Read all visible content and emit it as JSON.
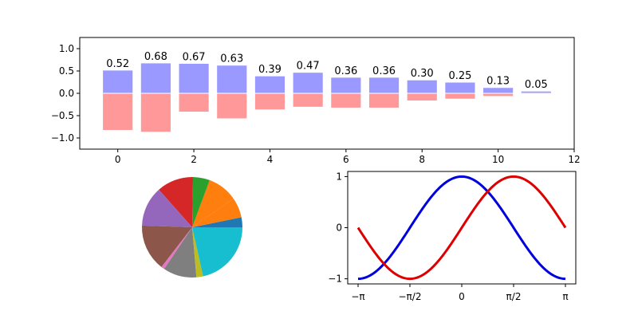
{
  "chart_data": [
    {
      "type": "bar",
      "x": [
        0,
        1,
        2,
        3,
        4,
        5,
        6,
        7,
        8,
        9,
        10,
        11
      ],
      "series": [
        {
          "values": [
            0.52,
            0.68,
            0.67,
            0.63,
            0.39,
            0.47,
            0.36,
            0.36,
            0.3,
            0.25,
            0.13,
            0.05
          ],
          "color": "#9999ff"
        },
        {
          "values": [
            -0.83,
            -0.87,
            -0.42,
            -0.57,
            -0.37,
            -0.31,
            -0.33,
            -0.33,
            -0.17,
            -0.13,
            -0.07,
            -0.02
          ],
          "color": "#ff9999"
        }
      ],
      "data_labels": [
        "0.52",
        "0.68",
        "0.67",
        "0.63",
        "0.39",
        "0.47",
        "0.36",
        "0.36",
        "0.30",
        "0.25",
        "0.13",
        "0.05"
      ],
      "xlim": [
        -1,
        12
      ],
      "ylim": [
        -1.25,
        1.25
      ],
      "xticks": [
        0,
        2,
        4,
        6,
        8,
        10,
        12
      ],
      "xtick_labels": [
        "0",
        "2",
        "4",
        "6",
        "8",
        "10",
        "12"
      ],
      "yticks": [
        -1.0,
        -0.5,
        0.0,
        0.5,
        1.0
      ],
      "ytick_labels": [
        "−1.0",
        "−0.5",
        "0.0",
        "0.5",
        "1.0"
      ],
      "grid": false
    },
    {
      "type": "pie",
      "values": [
        3,
        6,
        9,
        5,
        11,
        12,
        14,
        1,
        10,
        2,
        20
      ],
      "colors": [
        "#1f77b4",
        "#ff7f0e",
        "#ff7f0e",
        "#2ca02c",
        "#d62728",
        "#9467bd",
        "#8c564b",
        "#e377c2",
        "#7f7f7f",
        "#bcbd22",
        "#17becf"
      ],
      "start_angle_deg": 0,
      "direction": "counterclockwise"
    },
    {
      "type": "line",
      "x_range": [
        -3.14159,
        3.14159
      ],
      "series": [
        {
          "function": "cos",
          "color": "#0000dd"
        },
        {
          "function": "sin",
          "color": "#dd0000"
        }
      ],
      "xticks": [
        -3.14159,
        -1.5708,
        0,
        1.5708,
        3.14159
      ],
      "xtick_labels": [
        "−π",
        "−π/2",
        "0",
        "π/2",
        "π"
      ],
      "yticks": [
        -1,
        0,
        1
      ],
      "ytick_labels": [
        "−1",
        "0",
        "1"
      ],
      "ylim": [
        -1.1,
        1.1
      ],
      "grid": false
    }
  ]
}
